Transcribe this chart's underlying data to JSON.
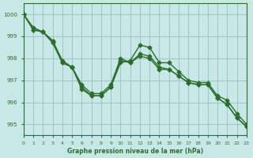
{
  "title": "Graphe pression niveau de la mer (hPa)",
  "bg_color": "#c8e8e8",
  "grid_color": "#a0c8c8",
  "line_color": "#2d6e2d",
  "xlim": [
    0,
    23
  ],
  "ylim": [
    994.5,
    1000.5
  ],
  "yticks": [
    995,
    996,
    997,
    998,
    999,
    1000
  ],
  "xticks": [
    0,
    1,
    2,
    3,
    4,
    5,
    6,
    7,
    8,
    9,
    10,
    11,
    12,
    13,
    14,
    15,
    16,
    17,
    18,
    19,
    20,
    21,
    22,
    23
  ],
  "series1": [
    1000.0,
    999.4,
    999.2,
    998.8,
    997.8,
    997.6,
    996.6,
    996.3,
    996.3,
    996.7,
    997.8,
    997.9,
    998.6,
    998.5,
    997.8,
    997.8,
    997.4,
    997.0,
    996.9,
    996.9,
    996.3,
    996.1,
    995.5,
    995.0
  ],
  "series2": [
    1000.0,
    999.3,
    999.2,
    998.8,
    997.9,
    997.6,
    996.8,
    996.4,
    996.4,
    996.8,
    998.0,
    997.8,
    998.2,
    998.1,
    997.6,
    997.5,
    997.2,
    996.9,
    996.8,
    996.8,
    996.2,
    995.9,
    995.3,
    994.9
  ],
  "series3": [
    1000.0,
    999.3,
    999.2,
    998.7,
    997.8,
    997.6,
    996.7,
    996.3,
    996.3,
    996.7,
    997.9,
    997.8,
    998.1,
    998.0,
    997.5,
    997.5,
    997.2,
    996.9,
    996.8,
    996.8,
    996.2,
    995.9,
    995.3,
    994.9
  ]
}
